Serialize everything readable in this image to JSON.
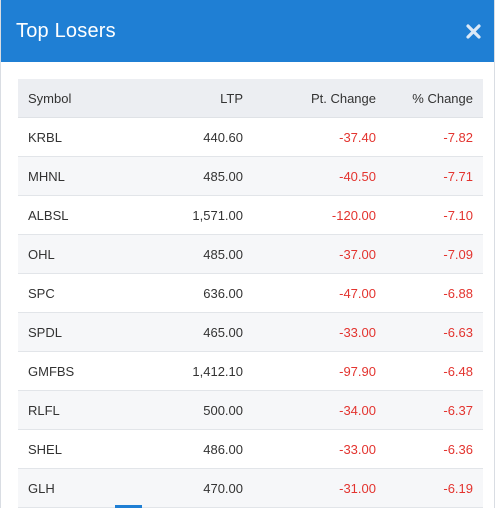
{
  "modal": {
    "title": "Top Losers",
    "close_icon": "close-icon"
  },
  "colors": {
    "header_bg": "#1f7fd4",
    "negative": "#e3342f",
    "table_header_bg": "#eceef2"
  },
  "table": {
    "headers": {
      "symbol": "Symbol",
      "ltp": "LTP",
      "pt_change": "Pt. Change",
      "pct_change": "% Change"
    },
    "rows": [
      {
        "symbol": "KRBL",
        "ltp": "440.60",
        "pt_change": "-37.40",
        "pct_change": "-7.82"
      },
      {
        "symbol": "MHNL",
        "ltp": "485.00",
        "pt_change": "-40.50",
        "pct_change": "-7.71"
      },
      {
        "symbol": "ALBSL",
        "ltp": "1,571.00",
        "pt_change": "-120.00",
        "pct_change": "-7.10"
      },
      {
        "symbol": "OHL",
        "ltp": "485.00",
        "pt_change": "-37.00",
        "pct_change": "-7.09"
      },
      {
        "symbol": "SPC",
        "ltp": "636.00",
        "pt_change": "-47.00",
        "pct_change": "-6.88"
      },
      {
        "symbol": "SPDL",
        "ltp": "465.00",
        "pt_change": "-33.00",
        "pct_change": "-6.63"
      },
      {
        "symbol": "GMFBS",
        "ltp": "1,412.10",
        "pt_change": "-97.90",
        "pct_change": "-6.48"
      },
      {
        "symbol": "RLFL",
        "ltp": "500.00",
        "pt_change": "-34.00",
        "pct_change": "-6.37"
      },
      {
        "symbol": "SHEL",
        "ltp": "486.00",
        "pt_change": "-33.00",
        "pct_change": "-6.36"
      },
      {
        "symbol": "GLH",
        "ltp": "470.00",
        "pt_change": "-31.00",
        "pct_change": "-6.19"
      }
    ]
  }
}
